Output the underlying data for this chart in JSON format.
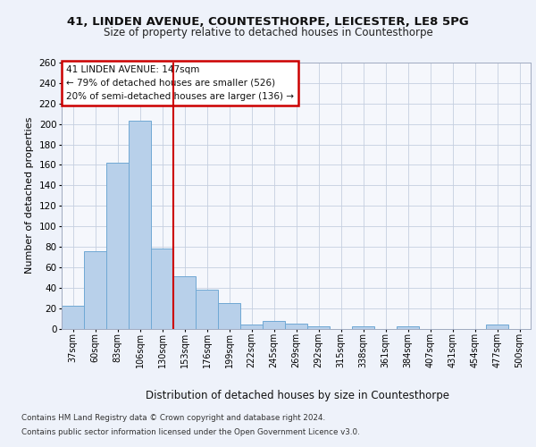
{
  "title1": "41, LINDEN AVENUE, COUNTESTHORPE, LEICESTER, LE8 5PG",
  "title2": "Size of property relative to detached houses in Countesthorpe",
  "xlabel": "Distribution of detached houses by size in Countesthorpe",
  "ylabel": "Number of detached properties",
  "categories": [
    "37sqm",
    "60sqm",
    "83sqm",
    "106sqm",
    "130sqm",
    "153sqm",
    "176sqm",
    "199sqm",
    "222sqm",
    "245sqm",
    "269sqm",
    "292sqm",
    "315sqm",
    "338sqm",
    "361sqm",
    "384sqm",
    "407sqm",
    "431sqm",
    "454sqm",
    "477sqm",
    "500sqm"
  ],
  "values": [
    22,
    76,
    162,
    203,
    78,
    51,
    38,
    25,
    4,
    7,
    5,
    2,
    0,
    2,
    0,
    2,
    0,
    0,
    0,
    4,
    0
  ],
  "bar_color": "#b8d0ea",
  "bar_edge_color": "#6fa8d4",
  "vline_x": 4.5,
  "vline_color": "#cc0000",
  "annotation_text": "41 LINDEN AVENUE: 147sqm\n← 79% of detached houses are smaller (526)\n20% of semi-detached houses are larger (136) →",
  "annotation_box_color": "#cc0000",
  "ylim": [
    0,
    260
  ],
  "yticks": [
    0,
    20,
    40,
    60,
    80,
    100,
    120,
    140,
    160,
    180,
    200,
    220,
    240,
    260
  ],
  "footer1": "Contains HM Land Registry data © Crown copyright and database right 2024.",
  "footer2": "Contains public sector information licensed under the Open Government Licence v3.0.",
  "bg_color": "#eef2fa",
  "plot_bg_color": "#f5f7fc",
  "grid_color": "#c5cfe0"
}
